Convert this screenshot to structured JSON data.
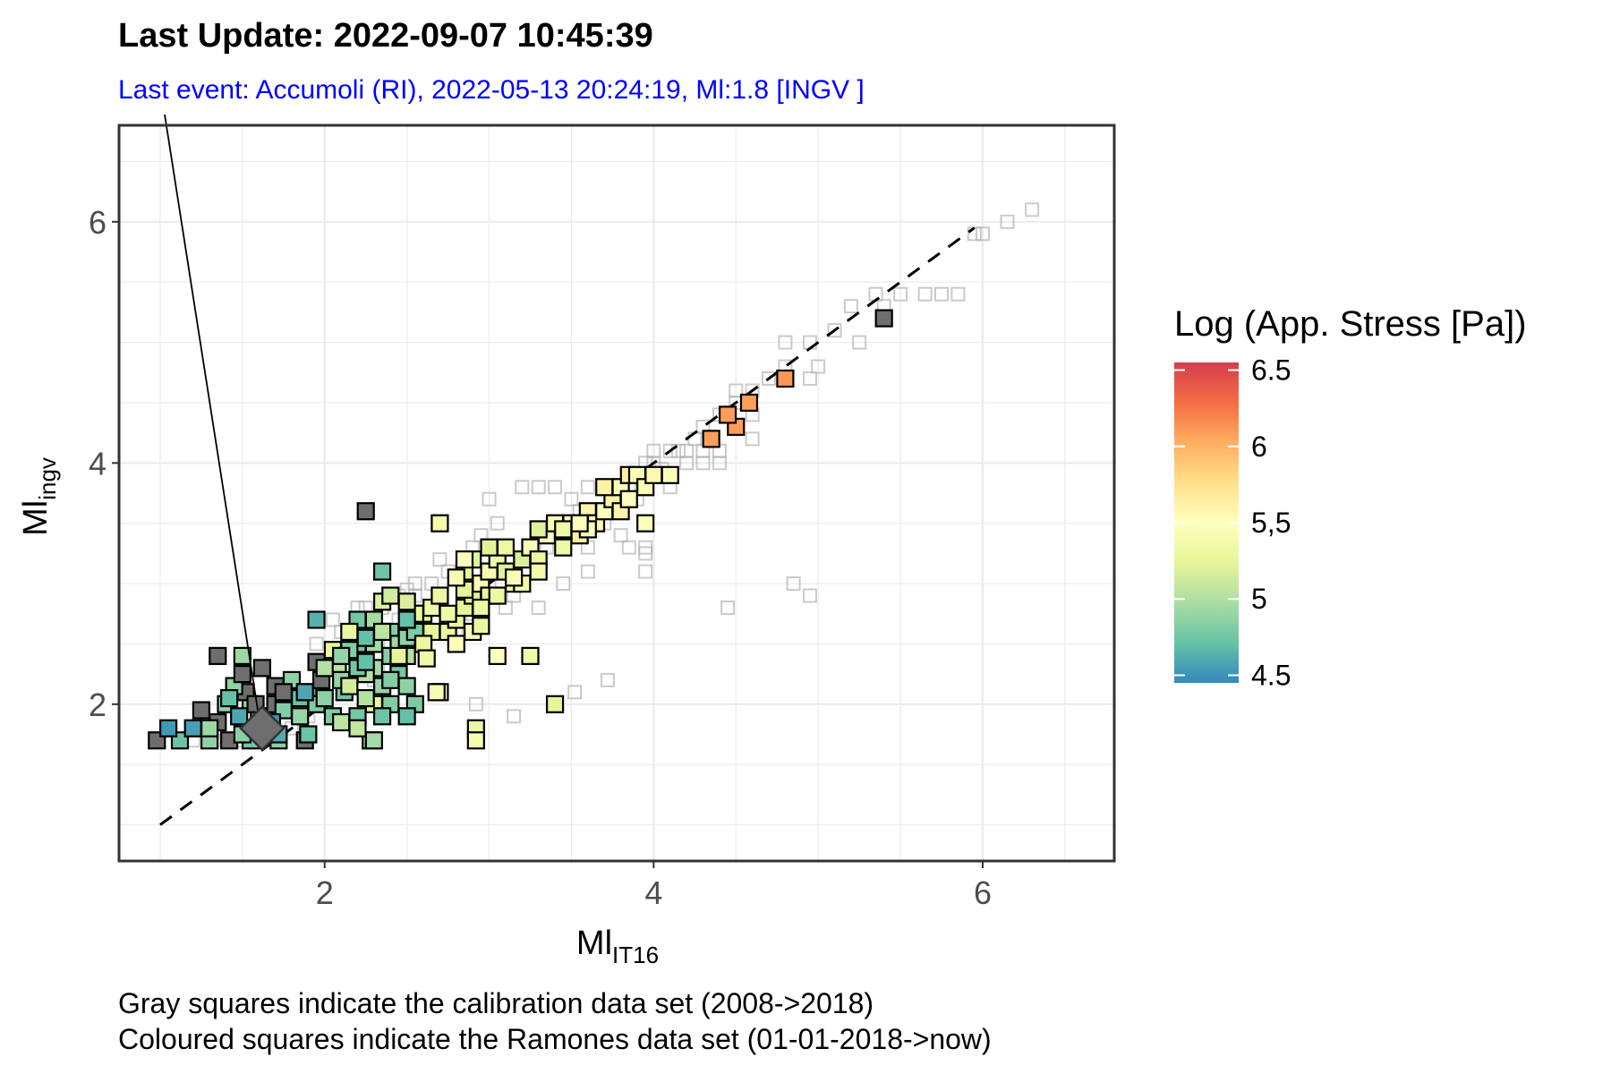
{
  "chart_data": {
    "type": "scatter",
    "title": "Last Update:  2022-09-07 10:45:39",
    "subtitle": "Last event: Accumoli (RI),  2022-05-13 20:24:19, Ml:1.8 [INGV ]",
    "xlabel": "Ml",
    "xlabel_sub": "IT16",
    "ylabel": "Ml",
    "ylabel_sub": "ingv",
    "xlim": [
      0.75,
      6.8
    ],
    "ylim": [
      0.7,
      6.8
    ],
    "x_ticks": [
      2,
      4,
      6
    ],
    "y_ticks": [
      2,
      4,
      6
    ],
    "grid": true,
    "reference_line": {
      "style": "dashed",
      "from": [
        1.0,
        1.0
      ],
      "to": [
        5.95,
        5.95
      ]
    },
    "colorbar": {
      "title": "Log (App. Stress [Pa])",
      "min": 4.45,
      "max": 6.55,
      "ticks": [
        {
          "value": 4.5,
          "label": "4.5"
        },
        {
          "value": 5.0,
          "label": "5"
        },
        {
          "value": 5.5,
          "label": "5,5"
        },
        {
          "value": 6.0,
          "label": "6"
        },
        {
          "value": 6.5,
          "label": "6.5"
        }
      ],
      "colors": [
        "#3288bd",
        "#66c2a5",
        "#abdda4",
        "#e6f598",
        "#ffffbf",
        "#fee08b",
        "#fdae61",
        "#f46d43",
        "#d53e4f"
      ]
    },
    "last_event": {
      "x": 1.62,
      "y": 1.8,
      "label_anchor_x": 1.0,
      "label_anchor_y": 6.8
    },
    "calibration_points": [
      [
        6.3,
        6.1
      ],
      [
        6.15,
        6.0
      ],
      [
        6.0,
        5.9
      ],
      [
        5.95,
        5.9
      ],
      [
        5.85,
        5.4
      ],
      [
        5.75,
        5.4
      ],
      [
        5.65,
        5.4
      ],
      [
        5.5,
        5.4
      ],
      [
        5.35,
        5.4
      ],
      [
        5.4,
        5.3
      ],
      [
        5.2,
        5.3
      ],
      [
        5.1,
        5.1
      ],
      [
        4.95,
        5.0
      ],
      [
        4.8,
        5.0
      ],
      [
        5.0,
        4.8
      ],
      [
        4.95,
        4.7
      ],
      [
        5.25,
        5.0
      ],
      [
        4.8,
        4.8
      ],
      [
        4.7,
        4.7
      ],
      [
        4.6,
        4.6
      ],
      [
        4.5,
        4.6
      ],
      [
        4.5,
        4.5
      ],
      [
        4.4,
        4.4
      ],
      [
        4.3,
        4.3
      ],
      [
        4.6,
        4.4
      ],
      [
        4.5,
        4.3
      ],
      [
        4.4,
        4.1
      ],
      [
        4.35,
        4.2
      ],
      [
        4.25,
        4.2
      ],
      [
        4.15,
        4.1
      ],
      [
        4.1,
        4.1
      ],
      [
        4.0,
        4.1
      ],
      [
        3.95,
        4.0
      ],
      [
        4.2,
        4.1
      ],
      [
        4.3,
        4.1
      ],
      [
        4.6,
        4.2
      ],
      [
        4.4,
        4.0
      ],
      [
        4.3,
        4.0
      ],
      [
        4.2,
        4.0
      ],
      [
        4.1,
        3.9
      ],
      [
        4.0,
        3.9
      ],
      [
        3.9,
        3.9
      ],
      [
        3.8,
        3.8
      ],
      [
        3.7,
        3.8
      ],
      [
        4.1,
        3.8
      ],
      [
        3.9,
        3.7
      ],
      [
        3.75,
        3.6
      ],
      [
        3.6,
        3.8
      ],
      [
        3.5,
        3.7
      ],
      [
        3.4,
        3.8
      ],
      [
        3.3,
        3.8
      ],
      [
        3.2,
        3.8
      ],
      [
        3.0,
        3.7
      ],
      [
        3.45,
        3.5
      ],
      [
        3.35,
        3.4
      ],
      [
        3.25,
        3.3
      ],
      [
        3.1,
        3.3
      ],
      [
        3.05,
        3.5
      ],
      [
        2.95,
        3.4
      ],
      [
        2.9,
        3.3
      ],
      [
        2.85,
        3.2
      ],
      [
        2.75,
        3.1
      ],
      [
        2.65,
        3.0
      ],
      [
        2.55,
        2.9
      ],
      [
        2.45,
        2.9
      ],
      [
        2.35,
        2.8
      ],
      [
        2.25,
        2.8
      ],
      [
        2.2,
        2.8
      ],
      [
        2.05,
        2.7
      ],
      [
        2.1,
        2.6
      ],
      [
        2.25,
        2.5
      ],
      [
        2.4,
        2.5
      ],
      [
        2.6,
        2.6
      ],
      [
        2.8,
        2.6
      ],
      [
        2.95,
        2.7
      ],
      [
        3.1,
        2.8
      ],
      [
        3.3,
        2.8
      ],
      [
        3.45,
        3.0
      ],
      [
        3.6,
        3.1
      ],
      [
        3.8,
        3.4
      ],
      [
        3.85,
        3.3
      ],
      [
        3.95,
        3.3
      ],
      [
        3.95,
        3.1
      ],
      [
        3.95,
        3.25
      ],
      [
        3.95,
        3.5
      ],
      [
        3.7,
        3.5
      ],
      [
        3.6,
        3.3
      ],
      [
        3.15,
        2.9
      ],
      [
        3.0,
        2.9
      ],
      [
        2.9,
        2.75
      ],
      [
        2.8,
        2.7
      ],
      [
        2.55,
        2.6
      ],
      [
        2.45,
        2.7
      ],
      [
        4.85,
        3.0
      ],
      [
        4.45,
        2.8
      ],
      [
        4.95,
        2.9
      ],
      [
        3.72,
        2.2
      ],
      [
        3.52,
        2.1
      ],
      [
        3.15,
        1.9
      ],
      [
        2.92,
        2.0
      ],
      [
        1.9,
        1.9
      ],
      [
        1.8,
        1.8
      ],
      [
        1.7,
        1.7
      ],
      [
        1.6,
        1.7
      ],
      [
        1.5,
        1.7
      ],
      [
        1.4,
        1.7
      ],
      [
        1.3,
        1.7
      ],
      [
        1.2,
        1.7
      ],
      [
        1.9,
        2.1
      ],
      [
        2.0,
        2.3
      ],
      [
        1.85,
        2.0
      ],
      [
        2.3,
        2.2
      ],
      [
        2.4,
        2.3
      ],
      [
        1.95,
        2.5
      ],
      [
        2.05,
        2.4
      ],
      [
        3.0,
        3.0
      ],
      [
        3.15,
        3.1
      ],
      [
        3.25,
        3.2
      ],
      [
        3.35,
        3.3
      ],
      [
        3.45,
        3.4
      ],
      [
        3.55,
        3.6
      ],
      [
        3.65,
        3.6
      ],
      [
        3.75,
        3.7
      ],
      [
        3.85,
        3.8
      ],
      [
        2.7,
        3.2
      ],
      [
        2.55,
        3.0
      ],
      [
        2.5,
        2.95
      ],
      [
        4.0,
        4.0
      ],
      [
        3.95,
        3.85
      ],
      [
        4.05,
        3.95
      ]
    ],
    "ramones_points": [
      [
        0.98,
        1.7
      ],
      [
        1.12,
        1.7
      ],
      [
        1.3,
        1.7
      ],
      [
        1.42,
        1.7
      ],
      [
        1.55,
        1.7
      ],
      [
        1.72,
        1.7
      ],
      [
        1.88,
        1.7
      ],
      [
        1.05,
        1.8
      ],
      [
        1.2,
        1.8
      ],
      [
        1.35,
        1.85
      ],
      [
        1.5,
        1.75
      ],
      [
        1.62,
        1.8
      ],
      [
        1.25,
        1.95
      ],
      [
        1.4,
        2.0
      ],
      [
        1.55,
        2.0
      ],
      [
        1.7,
        2.0
      ],
      [
        1.85,
        1.9
      ],
      [
        1.9,
        2.1
      ],
      [
        1.35,
        2.4
      ],
      [
        1.5,
        2.4
      ],
      [
        1.62,
        2.3
      ],
      [
        1.52,
        2.1
      ],
      [
        1.8,
        2.2
      ],
      [
        1.95,
        2.0
      ],
      [
        2.25,
        3.6
      ],
      [
        2.08,
        2.3
      ],
      [
        2.12,
        2.1
      ],
      [
        2.2,
        1.9
      ],
      [
        2.3,
        2.0
      ],
      [
        1.45,
        2.15
      ],
      [
        5.4,
        5.2
      ],
      [
        2.7,
        3.5
      ],
      [
        2.3,
        2.3
      ],
      [
        2.4,
        2.4
      ],
      [
        1.5,
        2.25
      ],
      [
        1.6,
        1.9
      ],
      [
        1.7,
        2.15
      ],
      [
        1.85,
        2.05
      ],
      [
        2.05,
        2.45
      ],
      [
        2.2,
        2.5
      ],
      [
        2.15,
        2.45
      ],
      [
        2.25,
        2.25
      ],
      [
        1.95,
        2.35
      ],
      [
        1.75,
        1.95
      ],
      [
        1.42,
        2.05
      ],
      [
        1.58,
        2.0
      ],
      [
        1.68,
        1.85
      ],
      [
        2.1,
        2.2
      ],
      [
        2.0,
        2.05
      ],
      [
        1.3,
        1.8
      ],
      [
        1.48,
        1.9
      ],
      [
        1.98,
        2.2
      ],
      [
        2.35,
        3.1
      ],
      [
        2.4,
        2.6
      ],
      [
        2.3,
        2.5
      ],
      [
        2.2,
        2.3
      ],
      [
        2.1,
        2.4
      ],
      [
        2.0,
        2.3
      ],
      [
        2.15,
        2.15
      ],
      [
        2.35,
        2.15
      ],
      [
        2.45,
        2.3
      ],
      [
        2.5,
        2.4
      ],
      [
        1.95,
        2.7
      ],
      [
        2.05,
        1.9
      ],
      [
        2.25,
        2.05
      ],
      [
        2.4,
        2.0
      ],
      [
        2.28,
        1.7
      ],
      [
        2.35,
        1.9
      ],
      [
        2.2,
        1.8
      ],
      [
        1.75,
        2.1
      ],
      [
        1.72,
        1.75
      ],
      [
        1.88,
        2.1
      ],
      [
        2.2,
        2.7
      ],
      [
        2.45,
        2.5
      ],
      [
        2.5,
        2.55
      ],
      [
        2.6,
        2.5
      ],
      [
        2.55,
        2.6
      ],
      [
        2.3,
        2.7
      ],
      [
        2.35,
        2.6
      ],
      [
        2.45,
        2.4
      ],
      [
        2.45,
        2.25
      ],
      [
        2.5,
        2.15
      ],
      [
        2.55,
        2.0
      ],
      [
        2.5,
        1.9
      ],
      [
        2.6,
        2.75
      ],
      [
        2.65,
        2.8
      ],
      [
        2.7,
        2.9
      ],
      [
        2.75,
        2.6
      ],
      [
        2.8,
        2.7
      ],
      [
        2.85,
        2.8
      ],
      [
        2.9,
        2.9
      ],
      [
        2.95,
        3.0
      ],
      [
        3.0,
        3.1
      ],
      [
        3.0,
        2.9
      ],
      [
        3.05,
        3.2
      ],
      [
        3.1,
        3.1
      ],
      [
        3.15,
        3.0
      ],
      [
        3.2,
        3.2
      ],
      [
        3.25,
        3.3
      ],
      [
        3.3,
        3.2
      ],
      [
        2.55,
        2.75
      ],
      [
        2.65,
        2.6
      ],
      [
        2.75,
        2.75
      ],
      [
        2.85,
        2.95
      ],
      [
        2.95,
        2.8
      ],
      [
        2.6,
        2.5
      ],
      [
        2.62,
        2.38
      ],
      [
        2.5,
        2.7
      ],
      [
        2.8,
        2.5
      ],
      [
        2.7,
        2.1
      ],
      [
        2.9,
        2.6
      ],
      [
        2.35,
        2.85
      ],
      [
        2.4,
        2.9
      ],
      [
        2.5,
        2.85
      ],
      [
        2.25,
        2.55
      ],
      [
        2.15,
        2.6
      ],
      [
        3.35,
        3.4
      ],
      [
        3.4,
        3.5
      ],
      [
        3.45,
        3.3
      ],
      [
        3.5,
        3.5
      ],
      [
        3.55,
        3.4
      ],
      [
        3.6,
        3.6
      ],
      [
        3.65,
        3.5
      ],
      [
        3.7,
        3.6
      ],
      [
        3.75,
        3.7
      ],
      [
        3.8,
        3.8
      ],
      [
        3.85,
        3.9
      ],
      [
        3.9,
        3.9
      ],
      [
        3.95,
        3.8
      ],
      [
        4.0,
        3.9
      ],
      [
        4.1,
        3.9
      ],
      [
        3.95,
        3.5
      ],
      [
        3.8,
        3.6
      ],
      [
        3.6,
        3.45
      ],
      [
        3.3,
        3.1
      ],
      [
        3.2,
        3.0
      ],
      [
        3.1,
        3.3
      ],
      [
        3.0,
        3.3
      ],
      [
        2.9,
        3.2
      ],
      [
        2.85,
        3.1
      ],
      [
        2.8,
        3.05
      ],
      [
        2.85,
        3.2
      ],
      [
        2.95,
        2.65
      ],
      [
        3.05,
        2.9
      ],
      [
        3.15,
        3.05
      ],
      [
        3.3,
        3.45
      ],
      [
        3.45,
        3.45
      ],
      [
        3.55,
        3.5
      ],
      [
        3.7,
        3.8
      ],
      [
        3.85,
        3.7
      ],
      [
        3.4,
        2.0
      ],
      [
        3.25,
        2.4
      ],
      [
        3.05,
        2.4
      ],
      [
        2.92,
        1.8
      ],
      [
        2.92,
        1.7
      ],
      [
        2.68,
        2.1
      ],
      [
        2.4,
        2.2
      ],
      [
        2.3,
        1.7
      ],
      [
        2.25,
        2.35
      ],
      [
        2.1,
        1.85
      ],
      [
        1.9,
        1.75
      ],
      [
        4.5,
        4.3
      ],
      [
        4.45,
        4.4
      ],
      [
        4.8,
        4.7
      ],
      [
        4.58,
        4.5
      ],
      [
        4.35,
        4.2
      ]
    ]
  },
  "caption": {
    "line1": "Gray squares indicate the calibration data set (2008->2018)",
    "line2": "Coloured squares indicate the Ramones data set (01-01-2018->now)"
  }
}
